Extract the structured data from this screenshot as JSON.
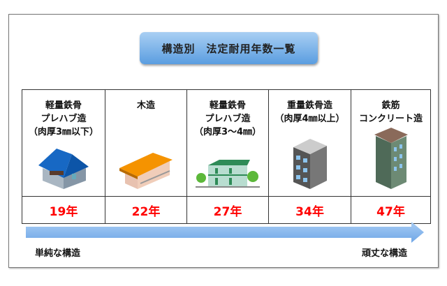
{
  "title": "構造別　法定耐用年数一覧",
  "columns": [
    {
      "lines": [
        "軽量鉄骨",
        "プレハブ造",
        "（肉厚3㎜以下）"
      ],
      "years": "19年",
      "icon": "blue-roof-house-icon"
    },
    {
      "lines": [
        "木造"
      ],
      "years": "22年",
      "icon": "wooden-apartment-icon"
    },
    {
      "lines": [
        "軽量鉄骨",
        "プレハブ造",
        "（肉厚3～4㎜）"
      ],
      "years": "27年",
      "icon": "prefab-apartment-icon"
    },
    {
      "lines": [
        "重量鉄骨造",
        "（肉厚4㎜以上）"
      ],
      "years": "34年",
      "icon": "steel-building-icon"
    },
    {
      "lines": [
        "鉄筋",
        "コンクリート造"
      ],
      "years": "47年",
      "icon": "concrete-tower-icon"
    }
  ],
  "arrow": {
    "left_label": "単純な構造",
    "right_label": "頑丈な構造",
    "color": "#7fb2ea"
  },
  "year_color": "#ff0000"
}
